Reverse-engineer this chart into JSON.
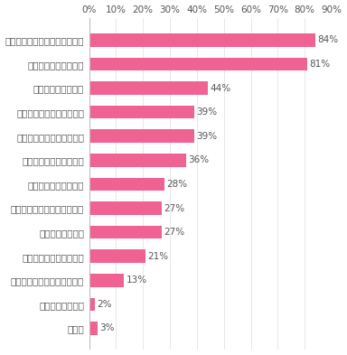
{
  "categories": [
    "挨拶がきちんと交わされている",
    "互いに助け合っている",
    "残業を良しとしない",
    "雑談を含め、会話量が多い",
    "プライベートに干渉しない",
    "上下関係にこだわらない",
    "切磋琢磨し合っている",
    "議論が活発に交わされている",
    "賞賛の文化がある",
    "静かで仕事に集中できる",
    "プライベートでも交流がある",
    "上下関係に厳しい",
    "その他"
  ],
  "values": [
    84,
    81,
    44,
    39,
    39,
    36,
    28,
    27,
    27,
    21,
    13,
    2,
    3
  ],
  "bar_color": "#F06292",
  "text_color": "#555555",
  "label_color": "#555555",
  "background_color": "#ffffff",
  "xlim": [
    0,
    90
  ],
  "xtick_values": [
    0,
    10,
    20,
    30,
    40,
    50,
    60,
    70,
    80,
    90
  ],
  "bar_height": 0.55,
  "figsize": [
    3.84,
    3.93
  ],
  "dpi": 100,
  "label_fontsize": 7.5,
  "value_fontsize": 7.5
}
